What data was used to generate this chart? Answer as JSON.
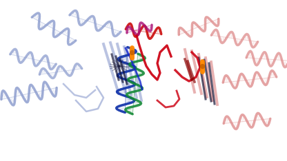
{
  "background_color": "#ffffff",
  "figsize": [
    4.16,
    2.34
  ],
  "dpi": 100,
  "left_chain_color": "#8899cc",
  "right_chain_color": "#dd8888",
  "helix_left": "#7788bb",
  "helix_right": "#cc7777",
  "center_blue": "#1133aa",
  "center_green": "#118833",
  "center_red": "#cc1111",
  "accent_magenta": "#aa1177",
  "loop_red": "#cc0011",
  "loop_blue": "#1122cc",
  "ligand_color": "#ff8800",
  "dark_accent": "#111133",
  "dark_red": "#880000"
}
